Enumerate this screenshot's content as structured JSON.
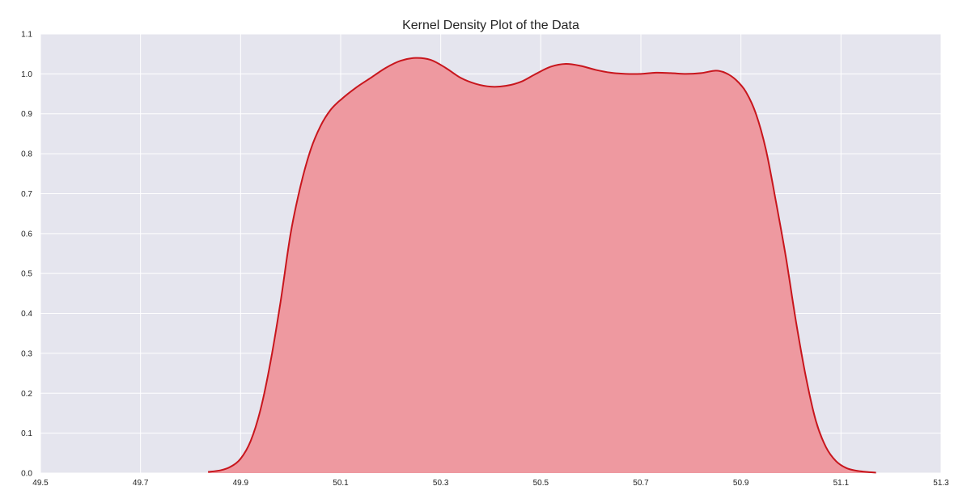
{
  "chart_data": {
    "type": "area",
    "title": "Kernel Density Plot of the Data",
    "xlabel": "",
    "ylabel": "",
    "xlim": [
      49.5,
      51.3
    ],
    "ylim": [
      0.0,
      1.1
    ],
    "x_ticks": [
      49.5,
      49.7,
      49.9,
      50.1,
      50.3,
      50.5,
      50.7,
      50.9,
      51.1,
      51.3
    ],
    "x_tick_labels": [
      "49.5",
      "49.7",
      "49.9",
      "50.1",
      "50.3",
      "50.5",
      "50.7",
      "50.9",
      "51.1",
      "51.3"
    ],
    "y_ticks": [
      0.0,
      0.1,
      0.2,
      0.3,
      0.4,
      0.5,
      0.6,
      0.7,
      0.8,
      0.9,
      1.0,
      1.1
    ],
    "y_tick_labels": [
      "0.0",
      "0.1",
      "0.2",
      "0.3",
      "0.4",
      "0.5",
      "0.6",
      "0.7",
      "0.8",
      "0.9",
      "1.0",
      "1.1"
    ],
    "grid": true,
    "series": [
      {
        "x": [
          49.835,
          49.86,
          49.88,
          49.9,
          49.92,
          49.94,
          49.96,
          49.98,
          50.0,
          50.02,
          50.04,
          50.06,
          50.08,
          50.1,
          50.13,
          50.16,
          50.19,
          50.22,
          50.25,
          50.28,
          50.31,
          50.34,
          50.37,
          50.4,
          50.43,
          50.46,
          50.49,
          50.52,
          50.55,
          50.58,
          50.61,
          50.64,
          50.67,
          50.7,
          50.73,
          50.76,
          50.79,
          50.82,
          50.85,
          50.87,
          50.89,
          50.91,
          50.93,
          50.95,
          50.97,
          50.99,
          51.01,
          51.03,
          51.05,
          51.07,
          51.09,
          51.11,
          51.13,
          51.15,
          51.17
        ],
        "y": [
          0.003,
          0.007,
          0.016,
          0.036,
          0.08,
          0.16,
          0.28,
          0.43,
          0.6,
          0.72,
          0.81,
          0.87,
          0.91,
          0.935,
          0.965,
          0.99,
          1.015,
          1.033,
          1.04,
          1.035,
          1.015,
          0.99,
          0.975,
          0.968,
          0.97,
          0.98,
          1.0,
          1.018,
          1.025,
          1.02,
          1.01,
          1.003,
          1.0,
          1.0,
          1.003,
          1.002,
          1.0,
          1.002,
          1.008,
          1.002,
          0.985,
          0.955,
          0.9,
          0.81,
          0.68,
          0.54,
          0.38,
          0.24,
          0.13,
          0.065,
          0.03,
          0.013,
          0.006,
          0.003,
          0.001
        ]
      }
    ],
    "colors": {
      "background": "#e5e5ee",
      "grid": "#ffffff",
      "line": "#c8161d",
      "fill": "#ee99a0"
    }
  }
}
